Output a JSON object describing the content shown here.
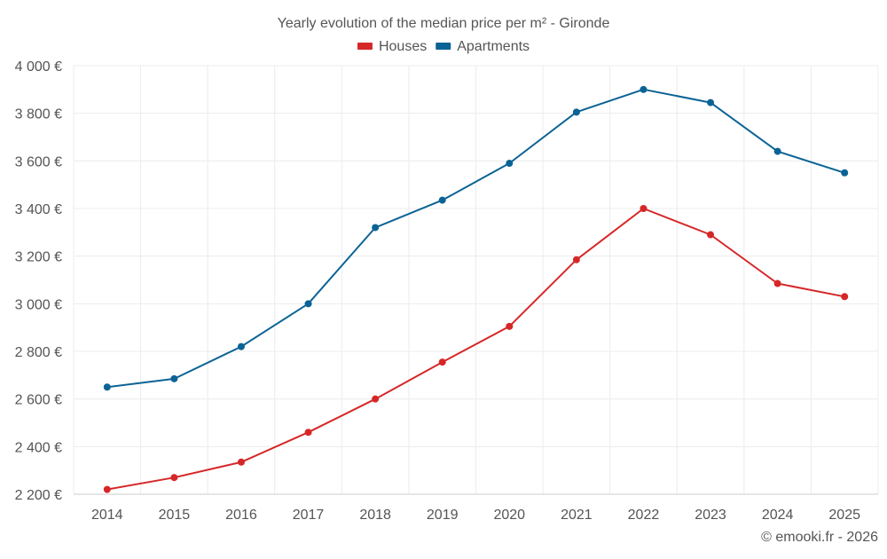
{
  "chart_data": {
    "type": "line",
    "title": "Yearly evolution of the median price per m² - Gironde",
    "categories": [
      "2014",
      "2015",
      "2016",
      "2017",
      "2018",
      "2019",
      "2020",
      "2021",
      "2022",
      "2023",
      "2024",
      "2025"
    ],
    "series": [
      {
        "name": "Houses",
        "color": "#d62728",
        "values": [
          2220,
          2270,
          2335,
          2460,
          2600,
          2755,
          2905,
          3185,
          3400,
          3290,
          3085,
          3030
        ]
      },
      {
        "name": "Apartments",
        "color": "#0b6395",
        "values": [
          2650,
          2685,
          2820,
          3000,
          3320,
          3435,
          3590,
          3805,
          3900,
          3845,
          3640,
          3550
        ]
      }
    ],
    "ylim": [
      2200,
      4000
    ],
    "yticks": [
      2200,
      2400,
      2600,
      2800,
      3000,
      3200,
      3400,
      3600,
      3800,
      4000
    ],
    "ytick_labels": [
      "2 200 €",
      "2 400 €",
      "2 600 €",
      "2 800 €",
      "3 000 €",
      "3 200 €",
      "3 400 €",
      "3 600 €",
      "3 800 €",
      "4 000 €"
    ],
    "xlabel": "",
    "ylabel": "",
    "grid": true,
    "legend_position": "top-center",
    "credit": "© emooki.fr - 2026"
  },
  "colors": {
    "text": "#555555",
    "grid": "#ececec",
    "axis": "#cccccc"
  }
}
